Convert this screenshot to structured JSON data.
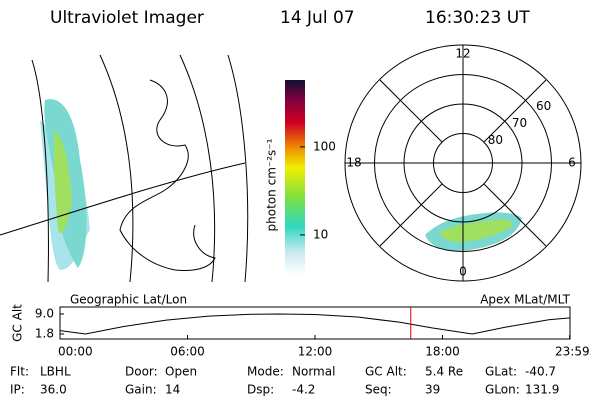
{
  "header": {
    "title": "Ultraviolet Imager",
    "date": "14 Jul 07",
    "time": "16:30:23 UT"
  },
  "colorbar": {
    "label": "photon cm⁻²s⁻¹",
    "lim": [
      3.5,
      575
    ],
    "log": true,
    "ticks": [
      10,
      100
    ]
  },
  "polar": {
    "mlt_ticks": [
      12,
      6,
      0,
      18
    ],
    "lat_lim": [
      90,
      50
    ],
    "lat_ticks": [
      60,
      70,
      80
    ]
  },
  "chart_data": {
    "type": "line",
    "left_label": "Geographic Lat/Lon",
    "right_label": "Apex MLat/MLT",
    "ylabel": "GC Alt",
    "x": [
      0,
      1.2,
      3,
      5,
      7,
      9,
      10.3,
      12,
      14,
      16,
      17.5,
      19.4,
      21,
      23,
      24
    ],
    "values": [
      3.0,
      1.8,
      4.5,
      6.8,
      8.2,
      8.9,
      9.0,
      8.8,
      7.9,
      6.0,
      4.0,
      1.8,
      4.3,
      6.9,
      7.6
    ],
    "color": "#000000",
    "marker_x": 16.506,
    "marker_color": "#e00000",
    "xlim": [
      0,
      24
    ],
    "ylim": [
      0,
      11.5
    ],
    "xticks": [
      {
        "value": 0,
        "label": "00:00"
      },
      {
        "value": 6,
        "label": "06:00"
      },
      {
        "value": 12,
        "label": "12:00"
      },
      {
        "value": 18,
        "label": "18:00"
      },
      {
        "value": 23.983,
        "label": "23:59"
      }
    ],
    "yticks": [
      {
        "value": 9.0,
        "label": "9.0"
      },
      {
        "value": 1.8,
        "label": "1.8"
      }
    ]
  },
  "footer": {
    "rows": [
      [
        {
          "label": "Flt:",
          "value": "LBHL"
        },
        {
          "label": "Door:",
          "value": "Open"
        },
        {
          "label": "Mode:",
          "value": "Normal"
        },
        {
          "label": "GC Alt:",
          "value": "5.4 Re"
        },
        {
          "label": "GLat:",
          "value": "-40.7"
        }
      ],
      [
        {
          "label": "IP:",
          "value": "36.0"
        },
        {
          "label": "Gain:",
          "value": "14"
        },
        {
          "label": "Dsp:",
          "value": "-4.2"
        },
        {
          "label": "Seq:",
          "value": "39"
        },
        {
          "label": "GLon:",
          "value": "131.9"
        }
      ]
    ]
  }
}
